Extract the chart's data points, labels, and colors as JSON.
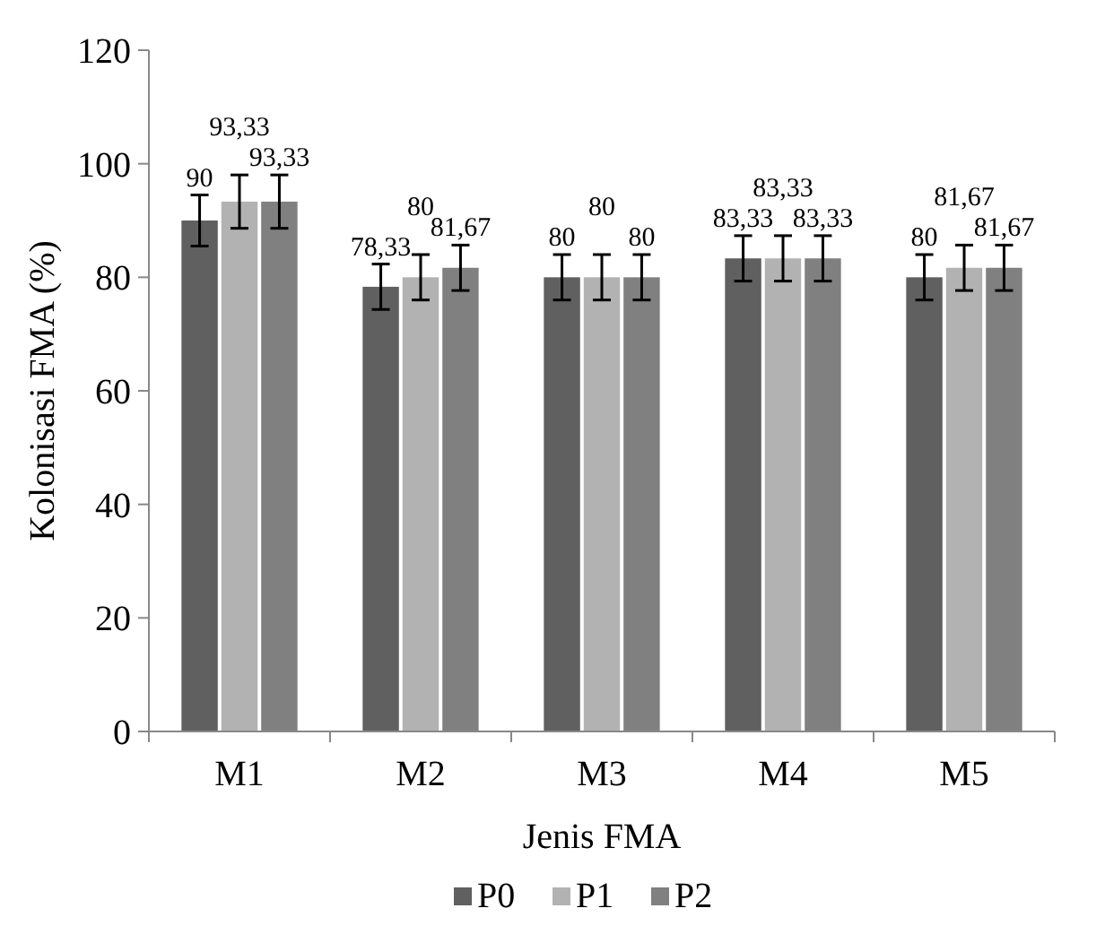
{
  "chart_data": {
    "type": "bar",
    "xlabel": "Jenis FMA",
    "ylabel": "Kolonisasi FMA (%)",
    "categories": [
      "M1",
      "M2",
      "M3",
      "M4",
      "M5"
    ],
    "series": [
      {
        "name": "P0",
        "color": "#606060",
        "values": [
          90,
          78.33,
          80,
          83.33,
          80
        ],
        "errors": [
          4.5,
          4,
          4,
          4,
          4
        ],
        "value_labels": [
          "90",
          "78,33",
          "80",
          "83,33",
          "80"
        ]
      },
      {
        "name": "P1",
        "color": "#b2b2b2",
        "values": [
          93.33,
          80,
          80,
          83.33,
          81.67
        ],
        "errors": [
          4.7,
          4,
          4,
          4,
          4
        ],
        "value_labels": [
          "93,33",
          "80",
          "80",
          "83,33",
          "81,67"
        ]
      },
      {
        "name": "P2",
        "color": "#808080",
        "values": [
          93.33,
          81.67,
          80,
          83.33,
          81.67
        ],
        "errors": [
          4.7,
          4,
          4,
          4,
          4
        ],
        "value_labels": [
          "93,33",
          "81,67",
          "80",
          "83,33",
          "81,67"
        ]
      }
    ],
    "ylim": [
      0,
      120
    ],
    "yticks": [
      0,
      20,
      40,
      60,
      80,
      100,
      120
    ],
    "grid": false,
    "legend": "bottom"
  }
}
